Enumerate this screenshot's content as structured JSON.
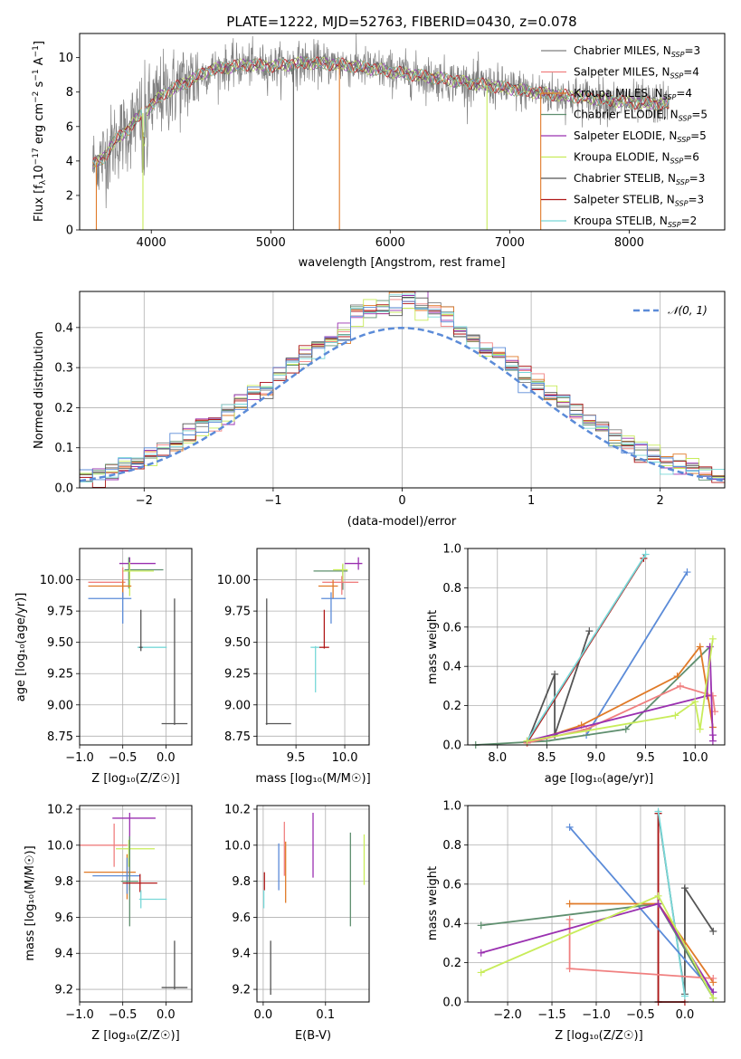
{
  "chart_data": [
    {
      "id": "spectrum",
      "type": "line",
      "title": "PLATE=1222, MJD=52763, FIBERID=0430, z=0.078",
      "xlabel": "wavelength [Angstrom, rest frame]",
      "ylabel": "Flux [f_λ 10⁻¹⁷ erg cm⁻² s⁻¹ A⁻¹]",
      "xlim": [
        3400,
        8800
      ],
      "ylim": [
        0,
        11.4
      ],
      "xticks": [
        4000,
        5000,
        6000,
        7000,
        8000
      ],
      "yticks": [
        0,
        2,
        4,
        6,
        8,
        10
      ],
      "grid": false,
      "legend_position": "upper-right",
      "series": [
        {
          "name": "Chabrier MILES, N_SSP=3",
          "color": "#7f7f7f"
        },
        {
          "name": "Salpeter MILES, N_SSP=4",
          "color": "#f08080"
        },
        {
          "name": "Kroupa MILES, N_SSP=4",
          "color": "#e07a28"
        },
        {
          "name": "Chabrier ELODIE, N_SSP=5",
          "color": "#5f8f6f"
        },
        {
          "name": "Salpeter ELODIE, N_SSP=5",
          "color": "#9a30b0"
        },
        {
          "name": "Kroupa ELODIE, N_SSP=6",
          "color": "#c8ec5a"
        },
        {
          "name": "Chabrier STELIB, N_SSP=3",
          "color": "#555555"
        },
        {
          "name": "Salpeter STELIB, N_SSP=3",
          "color": "#b01818"
        },
        {
          "name": "Kroupa STELIB, N_SSP=2",
          "color": "#78d8d8"
        }
      ],
      "continuum": {
        "x": [
          3500,
          3600,
          3700,
          3800,
          3900,
          4000,
          4100,
          4300,
          4500,
          4800,
          5000,
          5300,
          5600,
          6000,
          6300,
          6600,
          7000,
          7300,
          7600,
          8000,
          8300
        ],
        "y": [
          3.7,
          4.2,
          5.2,
          5.8,
          6.6,
          7.2,
          7.9,
          8.6,
          9.3,
          9.6,
          9.5,
          9.7,
          9.6,
          9.2,
          8.9,
          8.6,
          8.2,
          7.9,
          7.7,
          7.4,
          7.3
        ]
      }
    },
    {
      "id": "residuals",
      "type": "histogram",
      "xlabel": "(data-model)/error",
      "ylabel": "Normed distribution",
      "xlim": [
        -2.5,
        2.5
      ],
      "ylim": [
        0,
        0.49
      ],
      "xticks": [
        -2,
        -1,
        0,
        1,
        2
      ],
      "yticks": [
        0.0,
        0.1,
        0.2,
        0.3,
        0.4
      ],
      "grid": true,
      "legend": {
        "label": "𝒩(0, 1)",
        "position": "upper-right",
        "color": "#5b8bd8"
      },
      "bin_width": 0.1,
      "series_colors": [
        "#7f7f7f",
        "#f08080",
        "#e07a28",
        "#5f8f6f",
        "#9a30b0",
        "#c8ec5a",
        "#555555",
        "#b01818",
        "#78d8d8",
        "#5b8bd8"
      ]
    },
    {
      "id": "age-vs-Z",
      "type": "errorbar",
      "xlabel": "Z [log₁₀(Z/Z☉)]",
      "ylabel": "age  [log₁₀(age/yr)]",
      "xlim": [
        -1.0,
        0.3
      ],
      "ylim": [
        8.68,
        10.25
      ],
      "xticks": [
        -1.0,
        -0.5,
        0.0
      ],
      "xticklabels": [
        "−1.0",
        "−0.5",
        "0.0"
      ],
      "yticks": [
        8.75,
        9.0,
        9.25,
        9.5,
        9.75,
        10.0
      ],
      "grid": true,
      "points": [
        {
          "x": -0.42,
          "y": 10.13,
          "xerr": [
            0.12,
            0.3
          ],
          "yerr": [
            0.12,
            0.05
          ],
          "color": "#9a30b0"
        },
        {
          "x": -0.43,
          "y": 10.08,
          "xerr": [
            0.05,
            0.4
          ],
          "yerr": [
            0.15,
            0.1
          ],
          "color": "#5f8f6f"
        },
        {
          "x": -0.42,
          "y": 10.07,
          "xerr": [
            0.08,
            0.28
          ],
          "yerr": [
            0.2,
            0.07
          ],
          "color": "#c8ec5a"
        },
        {
          "x": -0.5,
          "y": 9.98,
          "xerr": [
            0.4,
            0.03
          ],
          "yerr": [
            0.12,
            0.12
          ],
          "color": "#f08080"
        },
        {
          "x": -0.5,
          "y": 9.95,
          "xerr": [
            0.4,
            0.1
          ],
          "yerr": [
            0.1,
            0.05
          ],
          "color": "#e07a28"
        },
        {
          "x": -0.5,
          "y": 9.85,
          "xerr": [
            0.4,
            0.1
          ],
          "yerr": [
            0.2,
            0.05
          ],
          "color": "#5b8bd8"
        },
        {
          "x": -0.29,
          "y": 9.46,
          "xerr": [
            0.04,
            0.3
          ],
          "yerr": [
            0.01,
            0.01
          ],
          "color": "#78d8d8"
        },
        {
          "x": -0.29,
          "y": 9.46,
          "xerr": [
            0.02,
            0.02
          ],
          "yerr": [
            0.03,
            0.3
          ],
          "color": "#555555"
        },
        {
          "x": 0.1,
          "y": 8.85,
          "xerr": [
            0.15,
            0.15
          ],
          "yerr": [
            0.01,
            1.0
          ],
          "color": "#555555"
        }
      ]
    },
    {
      "id": "age-vs-mass",
      "type": "errorbar",
      "xlabel": "mass [log₁₀(M/M☉)]",
      "ylabel": "",
      "xlim": [
        9.1,
        10.25
      ],
      "ylim": [
        8.68,
        10.25
      ],
      "xticks": [
        9.5,
        10.0
      ],
      "yticks": [
        8.75,
        9.0,
        9.25,
        9.5,
        9.75,
        10.0
      ],
      "grid": true,
      "points": [
        {
          "x": 10.14,
          "y": 10.13,
          "xerr": [
            0.14,
            0.04
          ],
          "yerr": [
            0.05,
            0.05
          ],
          "color": "#9a30b0"
        },
        {
          "x": 9.98,
          "y": 10.07,
          "xerr": [
            0.3,
            0.05
          ],
          "yerr": [
            0.15,
            0.05
          ],
          "color": "#5f8f6f"
        },
        {
          "x": 9.98,
          "y": 10.08,
          "xerr": [
            0.1,
            0.05
          ],
          "yerr": [
            0.1,
            0.05
          ],
          "color": "#c8ec5a"
        },
        {
          "x": 9.97,
          "y": 9.98,
          "xerr": [
            0.2,
            0.17
          ],
          "yerr": [
            0.1,
            0.05
          ],
          "color": "#f08080"
        },
        {
          "x": 9.88,
          "y": 9.95,
          "xerr": [
            0.15,
            0.05
          ],
          "yerr": [
            0.1,
            0.05
          ],
          "color": "#e07a28"
        },
        {
          "x": 9.86,
          "y": 9.85,
          "xerr": [
            0.1,
            0.15
          ],
          "yerr": [
            0.2,
            0.05
          ],
          "color": "#5b8bd8"
        },
        {
          "x": 9.7,
          "y": 9.46,
          "xerr": [
            0.05,
            0.05
          ],
          "yerr": [
            0.36,
            0.01
          ],
          "color": "#78d8d8"
        },
        {
          "x": 9.79,
          "y": 9.46,
          "xerr": [
            0.05,
            0.05
          ],
          "yerr": [
            0.01,
            0.3
          ],
          "color": "#b01818"
        },
        {
          "x": 9.2,
          "y": 8.85,
          "xerr": [
            0.01,
            0.25
          ],
          "yerr": [
            0.01,
            1.0
          ],
          "color": "#555555"
        }
      ]
    },
    {
      "id": "mass-weight-vs-age",
      "type": "line",
      "xlabel": "age  [log₁₀(age/yr)]",
      "ylabel": "mass weight",
      "xlim": [
        7.7,
        10.3
      ],
      "ylim": [
        0,
        1.0
      ],
      "xticks": [
        8.0,
        8.5,
        9.0,
        9.5,
        10.0
      ],
      "yticks": [
        0.0,
        0.2,
        0.4,
        0.6,
        0.8,
        1.0
      ],
      "grid": true,
      "series": [
        {
          "color": "#555555",
          "x": [
            8.3,
            8.58,
            8.58,
            8.93
          ],
          "y": [
            0.01,
            0.36,
            0.05,
            0.58
          ]
        },
        {
          "color": "#b01818",
          "x": [
            8.3,
            9.48
          ],
          "y": [
            0.01,
            0.95
          ]
        },
        {
          "color": "#78d8d8",
          "x": [
            8.3,
            9.5
          ],
          "y": [
            0.02,
            0.97
          ]
        },
        {
          "color": "#5b8bd8",
          "x": [
            8.9,
            9.92
          ],
          "y": [
            0.05,
            0.88
          ]
        },
        {
          "color": "#5f8f6f",
          "x": [
            7.78,
            8.5,
            9.3,
            10.15
          ],
          "y": [
            0.0,
            0.02,
            0.08,
            0.5
          ]
        },
        {
          "color": "#e07a28",
          "x": [
            8.3,
            8.85,
            9.82,
            10.05,
            10.18
          ],
          "y": [
            0.01,
            0.1,
            0.35,
            0.5,
            0.09
          ]
        },
        {
          "color": "#f08080",
          "x": [
            8.3,
            8.9,
            9.85,
            10.18,
            10.2
          ],
          "y": [
            0.01,
            0.08,
            0.3,
            0.25,
            0.17
          ]
        },
        {
          "color": "#9a30b0",
          "x": [
            8.3,
            10.12,
            10.15,
            10.18,
            10.18
          ],
          "y": [
            0.02,
            0.25,
            0.5,
            0.02,
            0.05
          ]
        },
        {
          "color": "#c8ec5a",
          "x": [
            8.3,
            9.8,
            10.0,
            10.05,
            10.18
          ],
          "y": [
            0.02,
            0.15,
            0.22,
            0.08,
            0.54
          ]
        }
      ]
    },
    {
      "id": "mass-vs-Z",
      "type": "errorbar",
      "xlabel": "Z [log₁₀(Z/Z☉)]",
      "ylabel": "mass [log₁₀(M/M☉)]",
      "xlim": [
        -1.0,
        0.3
      ],
      "ylim": [
        9.13,
        10.22
      ],
      "xticks": [
        -1.0,
        -0.5,
        0.0
      ],
      "xticklabels": [
        "−1.0",
        "−0.5",
        "0.0"
      ],
      "yticks": [
        9.2,
        9.4,
        9.6,
        9.8,
        10.0,
        10.2
      ],
      "grid": true,
      "points": [
        {
          "x": -0.42,
          "y": 10.15,
          "xerr": [
            0.2,
            0.3
          ],
          "yerr": [
            0.4,
            0.03
          ],
          "color": "#9a30b0"
        },
        {
          "x": -0.6,
          "y": 10.0,
          "xerr": [
            0.4,
            0.15
          ],
          "yerr": [
            0.12,
            0.12
          ],
          "color": "#f08080"
        },
        {
          "x": -0.43,
          "y": 9.98,
          "xerr": [
            0.15,
            0.3
          ],
          "yerr": [
            0.1,
            0.05
          ],
          "color": "#c8ec5a"
        },
        {
          "x": -0.45,
          "y": 9.85,
          "xerr": [
            0.5,
            0.1
          ],
          "yerr": [
            0.15,
            0.1
          ],
          "color": "#e07a28"
        },
        {
          "x": -0.45,
          "y": 9.83,
          "xerr": [
            0.4,
            0.15
          ],
          "yerr": [
            0.1,
            0.1
          ],
          "color": "#5b8bd8"
        },
        {
          "x": -0.42,
          "y": 9.8,
          "xerr": [
            0.1,
            0.1
          ],
          "yerr": [
            0.25,
            0.25
          ],
          "color": "#5f8f6f"
        },
        {
          "x": -0.3,
          "y": 9.79,
          "xerr": [
            0.2,
            0.2
          ],
          "yerr": [
            0.05,
            0.05
          ],
          "color": "#b01818"
        },
        {
          "x": -0.29,
          "y": 9.7,
          "xerr": [
            0.02,
            0.3
          ],
          "yerr": [
            0.05,
            0.05
          ],
          "color": "#78d8d8"
        },
        {
          "x": 0.1,
          "y": 9.21,
          "xerr": [
            0.15,
            0.15
          ],
          "yerr": [
            0.01,
            0.26
          ],
          "color": "#555555"
        }
      ]
    },
    {
      "id": "mass-vs-ebv",
      "type": "errorbar",
      "xlabel": "E(B-V)",
      "ylabel": "",
      "xlim": [
        -0.01,
        0.17
      ],
      "ylim": [
        9.13,
        10.22
      ],
      "xticks": [
        0.0,
        0.1
      ],
      "yticks": [
        9.2,
        9.4,
        9.6,
        9.8,
        10.0,
        10.2
      ],
      "grid": true,
      "points": [
        {
          "x": 0.002,
          "y": 9.8,
          "xerr": [
            0,
            0
          ],
          "yerr": [
            0.05,
            0.05
          ],
          "color": "#b01818"
        },
        {
          "x": 0.001,
          "y": 9.7,
          "xerr": [
            0,
            0
          ],
          "yerr": [
            0.05,
            0.05
          ],
          "color": "#78d8d8"
        },
        {
          "x": 0.012,
          "y": 9.22,
          "xerr": [
            0,
            0
          ],
          "yerr": [
            0.05,
            0.25
          ],
          "color": "#555555"
        },
        {
          "x": 0.025,
          "y": 9.88,
          "xerr": [
            0,
            0
          ],
          "yerr": [
            0.13,
            0.13
          ],
          "color": "#5b8bd8"
        },
        {
          "x": 0.034,
          "y": 9.98,
          "xerr": [
            0,
            0
          ],
          "yerr": [
            0.15,
            0.15
          ],
          "color": "#f08080"
        },
        {
          "x": 0.036,
          "y": 9.85,
          "xerr": [
            0,
            0
          ],
          "yerr": [
            0.17,
            0.17
          ],
          "color": "#e07a28"
        },
        {
          "x": 0.08,
          "y": 10.0,
          "xerr": [
            0,
            0
          ],
          "yerr": [
            0.18,
            0.18
          ],
          "color": "#9a30b0"
        },
        {
          "x": 0.14,
          "y": 9.81,
          "xerr": [
            0,
            0
          ],
          "yerr": [
            0.26,
            0.26
          ],
          "color": "#5f8f6f"
        },
        {
          "x": 0.162,
          "y": 9.92,
          "xerr": [
            0,
            0
          ],
          "yerr": [
            0.14,
            0.14
          ],
          "color": "#c8ec5a"
        }
      ]
    },
    {
      "id": "mass-weight-vs-Z",
      "type": "line",
      "xlabel": "Z [log₁₀(Z/Z☉)]",
      "ylabel": "mass weight",
      "xlim": [
        -2.45,
        0.45
      ],
      "ylim": [
        0,
        1.0
      ],
      "xticks": [
        -2.0,
        -1.5,
        -1.0,
        -0.5,
        0.0
      ],
      "xticklabels": [
        "−2.0",
        "−1.5",
        "−1.0",
        "−0.5",
        "0.0"
      ],
      "yticks": [
        0.0,
        0.2,
        0.4,
        0.6,
        0.8,
        1.0
      ],
      "grid": true,
      "series": [
        {
          "color": "#555555",
          "x": [
            -0.3,
            -0.3,
            0.0,
            0.0,
            0.32
          ],
          "y": [
            0.0,
            0.96,
            0.04,
            0.58,
            0.36
          ]
        },
        {
          "color": "#b01818",
          "x": [
            -0.3,
            -0.3,
            0.0
          ],
          "y": [
            0.96,
            0.0,
            0.0
          ]
        },
        {
          "color": "#78d8d8",
          "x": [
            -0.3,
            0.0
          ],
          "y": [
            0.97,
            0.03
          ]
        },
        {
          "color": "#5b8bd8",
          "x": [
            -1.3,
            0.32
          ],
          "y": [
            0.89,
            0.05
          ]
        },
        {
          "color": "#5f8f6f",
          "x": [
            -2.3,
            -0.3,
            0.32
          ],
          "y": [
            0.39,
            0.5,
            0.02
          ]
        },
        {
          "color": "#e07a28",
          "x": [
            -1.3,
            -0.3,
            0.32
          ],
          "y": [
            0.5,
            0.5,
            0.1
          ]
        },
        {
          "color": "#f08080",
          "x": [
            -1.3,
            -1.3,
            0.32
          ],
          "y": [
            0.42,
            0.17,
            0.12
          ]
        },
        {
          "color": "#9a30b0",
          "x": [
            -2.3,
            -0.3,
            0.32
          ],
          "y": [
            0.25,
            0.5,
            0.05
          ]
        },
        {
          "color": "#c8ec5a",
          "x": [
            -2.3,
            -0.3,
            0.32
          ],
          "y": [
            0.15,
            0.54,
            0.02
          ]
        }
      ]
    }
  ]
}
